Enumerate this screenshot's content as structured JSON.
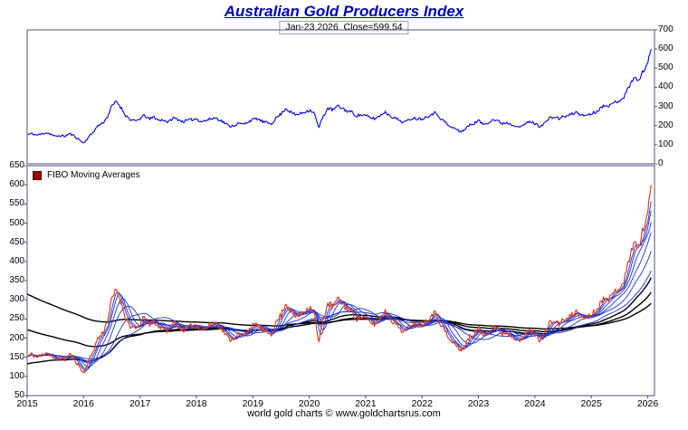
{
  "title": "Australian Gold Producers Index",
  "subtitle": "Jan-23 2026  Close=599.54",
  "footer": "world gold charts © www.goldchartsrus.com",
  "legend": {
    "label": "FIBO  Moving  Averages",
    "marker_color": "#990000"
  },
  "colors": {
    "title": "#0000bb",
    "price_top": "#0000ee",
    "price_bottom": "#e0391f",
    "ma_blue": "#1a2fd0",
    "ma_black": "#000000",
    "border": "#50507a"
  },
  "chart_data": {
    "type": "line",
    "title": "Australian Gold Producers Index",
    "subtitle": "Jan-23 2026  Close=599.54",
    "x_domain": [
      2015,
      2026.12
    ],
    "x_ticks": [
      2015,
      2016,
      2017,
      2018,
      2019,
      2020,
      2021,
      2022,
      2023,
      2024,
      2025,
      2026
    ],
    "top_panel": {
      "ylabel_side": "right",
      "ylim": [
        0,
        700
      ],
      "yticks": [
        0,
        100,
        200,
        300,
        400,
        500,
        600,
        700
      ],
      "series": "agpi"
    },
    "bottom_panel": {
      "ylabel_side": "left",
      "ylim": [
        50,
        650
      ],
      "yticks": [
        50,
        100,
        150,
        200,
        250,
        300,
        350,
        400,
        450,
        500,
        550,
        600,
        650
      ],
      "series": "agpi",
      "legend": "FIBO  Moving  Averages"
    },
    "series": {
      "agpi": {
        "label": "Australian Gold Producers Index",
        "monthly_start": "2015-01",
        "monthly_values": [
          152,
          158,
          150,
          155,
          164,
          156,
          142,
          148,
          144,
          158,
          146,
          128,
          108,
          138,
          165,
          198,
          212,
          242,
          300,
          328,
          292,
          252,
          230,
          222,
          236,
          254,
          232,
          246,
          226,
          231,
          216,
          240,
          234,
          221,
          226,
          231,
          236,
          222,
          226,
          235,
          241,
          230,
          214,
          196,
          201,
          211,
          206,
          221,
          231,
          236,
          221,
          214,
          211,
          241,
          261,
          291,
          271,
          256,
          261,
          271,
          281,
          271,
          186,
          251,
          291,
          281,
          301,
          291,
          276,
          271,
          251,
          256,
          251,
          241,
          236,
          251,
          271,
          256,
          241,
          231,
          216,
          226,
          241,
          236,
          236,
          246,
          261,
          266,
          236,
          216,
          191,
          186,
          168,
          178,
          201,
          211,
          226,
          206,
          216,
          231,
          226,
          211,
          216,
          206,
          201,
          191,
          211,
          221,
          211,
          196,
          211,
          236,
          246,
          236,
          246,
          251,
          261,
          271,
          251,
          256,
          262,
          272,
          292,
          312,
          302,
          322,
          332,
          352,
          402,
          452,
          432,
          482,
          530
        ],
        "close": {
          "date": "Jan-23 2026",
          "x": 2026.06,
          "value": 599.54
        }
      }
    },
    "fibo_mas": {
      "sma_periods_weeks": [
        5,
        8,
        13,
        21,
        34,
        55
      ],
      "ema_long": [
        {
          "period_weeks": 89,
          "start_value": 133
        },
        {
          "period_weeks": 144,
          "start_value": 222
        },
        {
          "period_weeks": 233,
          "start_value": 315
        }
      ]
    },
    "jitter": {
      "seed": 11,
      "base": 3,
      "frac": 0.02
    }
  }
}
